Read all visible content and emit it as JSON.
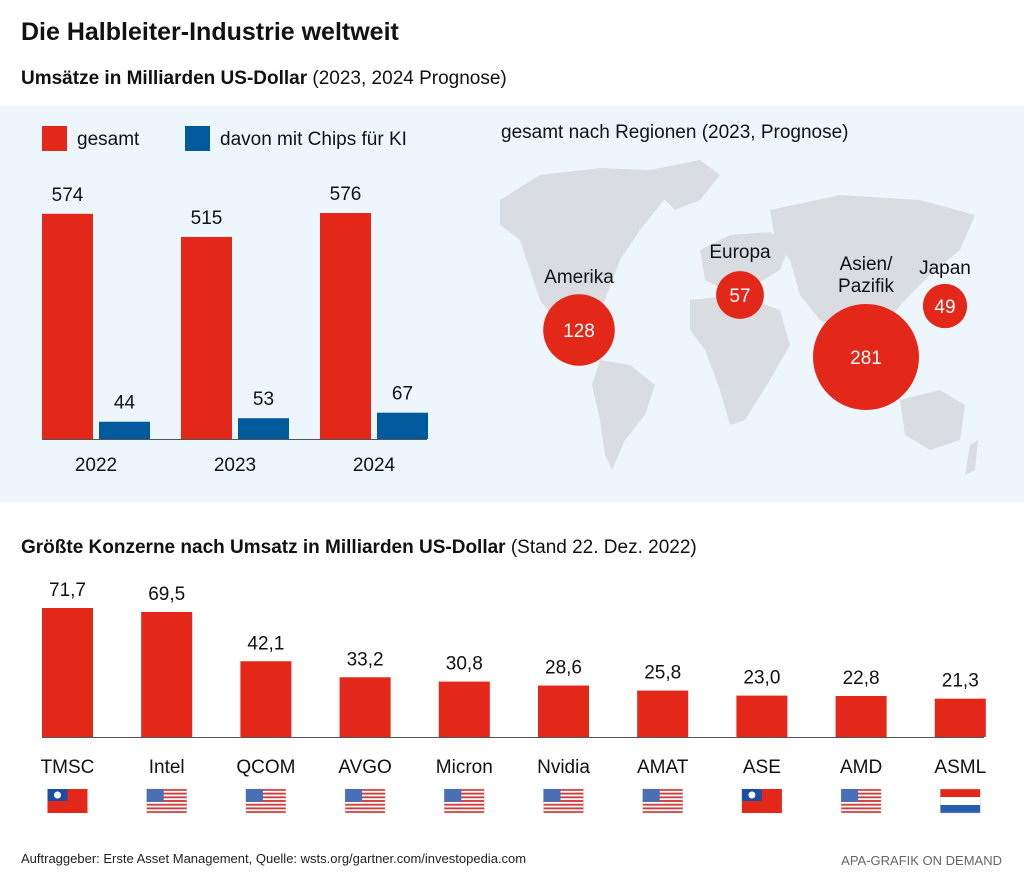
{
  "header": {
    "title": "Die Halbleiter-Industrie weltweit",
    "subtitle_bold": "Umsätze in Milliarden US-Dollar",
    "subtitle_rest": " (2023, 2024 Prognose)"
  },
  "colors": {
    "red": "#e32718",
    "blue": "#005a9c",
    "panel": "#eef6fd",
    "map": "#d9dde2"
  },
  "chart_data": [
    {
      "type": "bar",
      "title": "Umsätze in Milliarden US-Dollar (2023, 2024 Prognose)",
      "categories": [
        "2022",
        "2023",
        "2024"
      ],
      "series": [
        {
          "name": "gesamt",
          "values": [
            574,
            515,
            576
          ],
          "color": "#e32718"
        },
        {
          "name": "davon mit Chips für KI",
          "values": [
            44,
            53,
            67
          ],
          "color": "#005a9c"
        }
      ],
      "xlabel": "",
      "ylabel": "",
      "ylim": [
        0,
        576
      ],
      "legend": "top-left",
      "grid": false
    },
    {
      "type": "scatter",
      "title": "gesamt nach Regionen (2023, Prognose)",
      "subtype": "bubble-map",
      "points": [
        {
          "label": "Amerika",
          "value": 128
        },
        {
          "label": "Europa",
          "value": 57
        },
        {
          "label": "Asien/ Pazifik",
          "value": 281
        },
        {
          "label": "Japan",
          "value": 49
        }
      ]
    },
    {
      "type": "bar",
      "title": "Größte Konzerne nach Umsatz in Milliarden US-Dollar (Stand 22. Dez. 2022)",
      "categories": [
        "TMSC",
        "Intel",
        "QCOM",
        "AVGO",
        "Micron",
        "Nvidia",
        "AMAT",
        "ASE",
        "AMD",
        "ASML"
      ],
      "values": [
        71.7,
        69.5,
        42.1,
        33.2,
        30.8,
        28.6,
        25.8,
        23.0,
        22.8,
        21.3
      ],
      "value_labels": [
        "71,7",
        "69,5",
        "42,1",
        "33,2",
        "30,8",
        "28,6",
        "25,8",
        "23,0",
        "22,8",
        "21,3"
      ],
      "flags": [
        "taiwan",
        "usa",
        "usa",
        "usa",
        "usa",
        "usa",
        "usa",
        "taiwan",
        "usa",
        "netherlands"
      ],
      "xlabel": "",
      "ylabel": "",
      "ylim": [
        0,
        71.7
      ],
      "grid": false
    }
  ],
  "section2": {
    "title_bold": "Größte Konzerne nach Umsatz in Milliarden US-Dollar",
    "title_rest": " (Stand 22. Dez. 2022)"
  },
  "footer": {
    "source": "Auftraggeber: Erste Asset Management, Quelle: wsts.org/gartner.com/investopedia.com",
    "credit": "APA-GRAFIK ON DEMAND"
  }
}
